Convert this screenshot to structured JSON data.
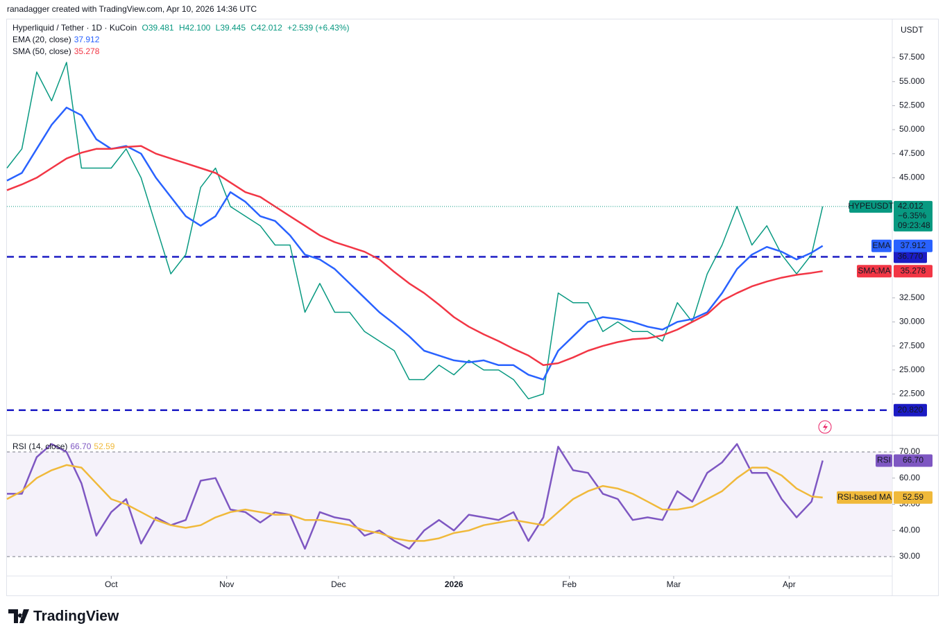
{
  "header": {
    "author": "ranadagger created with TradingView.com, Apr 10, 2026 14:36 UTC",
    "symbol": "Hyperliquid / Tether · 1D · KuCoin",
    "ohlc": [
      "O39.481",
      "H42.100",
      "L39.445",
      "C42.012"
    ],
    "change": "+2.539 (+6.43%)",
    "currency": "USDT"
  },
  "chart_data": [
    {
      "type": "line",
      "x": [
        -28,
        -24,
        -20,
        -16,
        -12,
        -8,
        -4,
        0,
        4,
        8,
        12,
        16,
        20,
        24,
        28,
        32,
        36,
        40,
        44,
        48,
        52,
        56,
        60,
        64,
        68,
        72,
        76,
        80,
        84,
        88,
        92,
        96,
        100,
        104,
        108,
        112,
        116,
        120,
        124,
        128,
        132,
        136,
        140,
        144,
        148,
        152,
        156,
        160,
        164,
        168,
        172,
        176,
        180,
        184,
        188,
        191
      ],
      "xlim": [
        -28,
        209.5
      ],
      "ylim": [
        18.42,
        61.47
      ],
      "yticks": [
        {
          "value": 57.5,
          "label": "57.500"
        },
        {
          "value": 55,
          "label": "55.000"
        },
        {
          "value": 52.5,
          "label": "52.500"
        },
        {
          "value": 50,
          "label": "50.000"
        },
        {
          "value": 47.5,
          "label": "47.500"
        },
        {
          "value": 45,
          "label": "45.000"
        },
        {
          "value": 32.5,
          "label": "32.500"
        },
        {
          "value": 30,
          "label": "30.000"
        },
        {
          "value": 27.5,
          "label": "27.500"
        },
        {
          "value": 25,
          "label": "25.000"
        },
        {
          "value": 22.5,
          "label": "22.500"
        }
      ],
      "series": [
        {
          "name": "HYPEUSDT",
          "color": "#089981",
          "badge_lines": [
            "−6.35%",
            "09:23:48"
          ],
          "values": [
            46,
            48,
            56,
            53,
            57,
            46,
            46,
            46,
            48,
            45,
            40,
            35,
            37,
            44,
            46,
            42,
            41,
            40,
            38,
            38,
            31,
            34,
            31,
            31,
            29,
            28,
            27,
            24,
            24,
            25.5,
            24.5,
            26,
            25,
            25,
            24,
            22,
            22.5,
            33,
            32,
            32,
            29,
            30,
            29,
            29,
            28,
            32,
            30,
            35,
            38,
            42,
            38,
            40,
            37,
            35,
            37,
            42.012
          ]
        },
        {
          "name": "EMA (20, close)",
          "axis_label": "EMA",
          "color": "#2962ff",
          "values": [
            44.7,
            45.5,
            48,
            50.5,
            52.3,
            51.5,
            49,
            48,
            48.3,
            47.5,
            45,
            43,
            41,
            40,
            41,
            43.5,
            42.5,
            41,
            40.5,
            39,
            37,
            36.5,
            35.5,
            34,
            32.5,
            31,
            29.8,
            28.5,
            27,
            26.5,
            26,
            25.8,
            26,
            25.5,
            25.5,
            24.5,
            24,
            27,
            28.5,
            30,
            30.5,
            30.3,
            30,
            29.5,
            29.2,
            30,
            30.3,
            31,
            33,
            35.5,
            37,
            37.8,
            37.3,
            36.5,
            37.2,
            37.912
          ]
        },
        {
          "name": "SMA (50, close)",
          "axis_label": "SMA:MA",
          "color": "#f23645",
          "values": [
            43.7,
            44.3,
            45,
            46,
            47,
            47.6,
            48,
            48,
            48.2,
            48.3,
            47.5,
            47,
            46.5,
            46,
            45.5,
            44.5,
            43.5,
            43,
            42,
            41,
            40,
            39,
            38.3,
            37.8,
            37.3,
            36.5,
            35.2,
            34,
            33,
            31.8,
            30.5,
            29.5,
            28.7,
            28,
            27.2,
            26.5,
            25.5,
            25.7,
            26.3,
            27,
            27.5,
            27.9,
            28.2,
            28.3,
            28.6,
            29.2,
            30,
            30.8,
            32.2,
            33,
            33.7,
            34.2,
            34.6,
            34.9,
            35.1,
            35.278
          ]
        }
      ],
      "levels": [
        {
          "value": 36.77,
          "label": "36.770",
          "color": "#1b1bc4"
        },
        {
          "value": 20.82,
          "label": "20.820",
          "color": "#1b1bc4"
        }
      ]
    },
    {
      "type": "line",
      "x": [
        -28,
        -24,
        -20,
        -16,
        -12,
        -8,
        -4,
        0,
        4,
        8,
        12,
        16,
        20,
        24,
        28,
        32,
        36,
        40,
        44,
        48,
        52,
        56,
        60,
        64,
        68,
        72,
        76,
        80,
        84,
        88,
        92,
        96,
        100,
        104,
        108,
        112,
        116,
        120,
        124,
        128,
        132,
        136,
        140,
        144,
        148,
        152,
        156,
        160,
        164,
        168,
        172,
        176,
        180,
        184,
        188,
        191
      ],
      "xlim": [
        -28,
        209.5
      ],
      "xticks": [
        {
          "value": 0,
          "label": "Oct"
        },
        {
          "value": 31,
          "label": "Nov"
        },
        {
          "value": 61,
          "label": "Dec"
        },
        {
          "value": 92,
          "label": "2026"
        },
        {
          "value": 123,
          "label": "Feb"
        },
        {
          "value": 151,
          "label": "Mar"
        },
        {
          "value": 182,
          "label": "Apr"
        }
      ],
      "ylim": [
        22.86,
        75.82
      ],
      "yticks": [
        {
          "value": 70,
          "label": "70.00"
        },
        {
          "value": 60,
          "label": "60.00"
        },
        {
          "value": 50,
          "label": "50.00"
        },
        {
          "value": 40,
          "label": "40.00"
        },
        {
          "value": 30,
          "label": "30.00"
        }
      ],
      "band": [
        30,
        70
      ],
      "series": [
        {
          "name": "RSI (14, close)",
          "axis_label": "RSI",
          "color": "#7e57c2",
          "values": [
            54,
            54,
            68,
            73,
            70,
            58,
            38,
            47,
            52,
            35,
            45,
            42,
            44,
            59,
            60,
            48,
            47,
            43,
            47,
            46,
            33,
            47,
            45,
            44,
            38,
            40,
            36,
            33,
            40,
            44,
            40,
            46,
            45,
            44,
            47,
            36,
            45,
            72,
            63,
            62,
            54,
            52,
            44,
            45,
            44,
            55,
            51,
            62,
            66,
            73,
            62,
            62,
            52,
            45,
            51,
            66.7
          ],
          "value_labels": [
            null,
            null,
            null,
            null,
            null,
            null,
            null,
            null,
            null,
            null,
            null,
            null,
            null,
            null,
            null,
            null,
            null,
            null,
            null,
            null,
            null,
            null,
            null,
            null,
            null,
            null,
            null,
            null,
            null,
            null,
            null,
            null,
            null,
            null,
            null,
            null,
            null,
            null,
            null,
            null,
            null,
            null,
            null,
            null,
            null,
            null,
            null,
            null,
            null,
            null,
            null,
            null,
            null,
            null,
            null,
            "66.70"
          ]
        },
        {
          "name": "RSI-based MA",
          "color": "#f0b93a",
          "values": [
            52,
            55,
            60,
            63,
            65,
            64,
            58,
            52,
            50,
            47,
            44,
            42,
            41,
            42,
            45,
            47,
            48,
            47,
            46,
            46,
            44,
            44,
            43,
            42,
            40,
            39,
            37,
            36,
            36,
            37,
            39,
            40,
            42,
            43,
            44,
            43,
            42,
            47,
            52,
            55,
            57,
            56,
            54,
            51,
            48,
            48,
            49,
            52,
            55,
            60,
            64,
            64,
            61,
            56,
            53,
            52.59
          ]
        }
      ]
    }
  ],
  "footer": {
    "logo": "TradingView"
  }
}
